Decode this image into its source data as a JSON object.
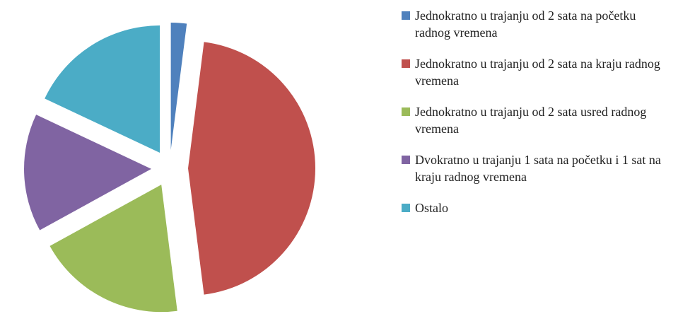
{
  "chart_data": {
    "type": "pie",
    "categories": [
      "Jednokratno u trajanju od 2 sata na početku radnog vremena",
      "Jednokratno u trajanju od 2 sata na kraju radnog vremena",
      "Jednokratno u trajanju od 2 sata usred radnog vremena",
      "Dvokratno u trajanju 1 sata na početku i 1 sat na kraju radnog vremena",
      "Ostalo"
    ],
    "values": [
      2,
      46,
      19,
      15,
      18
    ],
    "colors": [
      "#4f81bd",
      "#c0504d",
      "#9bbb59",
      "#8064a2",
      "#4bacc6"
    ],
    "exploded": true,
    "legend": "right"
  }
}
